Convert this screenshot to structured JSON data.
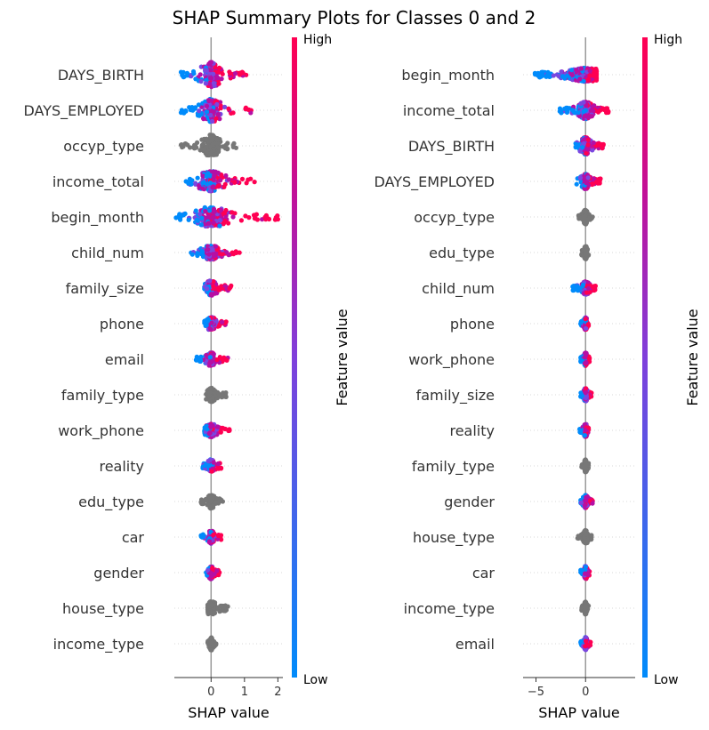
{
  "title": "SHAP Summary Plots for Classes 0 and 2",
  "colorbar": {
    "high_label": "High",
    "low_label": "Low",
    "axis_label": "Feature value",
    "colors": [
      "#008bfb",
      "#ff0052"
    ]
  },
  "gray_color": "#777777",
  "chart_data": [
    {
      "type": "scatter",
      "subtype": "shap-beeswarm",
      "class": "0",
      "xlabel": "SHAP value",
      "xlim": [
        -1.1,
        2.15
      ],
      "xticks": [
        "0",
        "1",
        "2"
      ],
      "xtick_values": [
        0,
        1,
        2
      ],
      "features": [
        {
          "name": "DAYS_BIRTH",
          "min": -0.9,
          "max": 1.05,
          "width": 1.0,
          "color": "mixed"
        },
        {
          "name": "DAYS_EMPLOYED",
          "min": -0.9,
          "max": 1.2,
          "width": 0.9,
          "color": "mixed"
        },
        {
          "name": "occyp_type",
          "min": -0.9,
          "max": 0.75,
          "width": 0.85,
          "color": "gray"
        },
        {
          "name": "income_total",
          "min": -0.75,
          "max": 1.3,
          "width": 0.8,
          "color": "mixed"
        },
        {
          "name": "begin_month",
          "min": -1.05,
          "max": 2.0,
          "width": 0.75,
          "color": "mixed"
        },
        {
          "name": "child_num",
          "min": -0.6,
          "max": 0.85,
          "width": 0.45,
          "color": "mixed"
        },
        {
          "name": "family_size",
          "min": -0.2,
          "max": 0.6,
          "width": 0.5,
          "color": "mixed"
        },
        {
          "name": "phone",
          "min": -0.2,
          "max": 0.45,
          "width": 0.4,
          "color": "mixed"
        },
        {
          "name": "email",
          "min": -0.45,
          "max": 0.5,
          "width": 0.4,
          "color": "mixed"
        },
        {
          "name": "family_type",
          "min": -0.15,
          "max": 0.45,
          "width": 0.45,
          "color": "gray"
        },
        {
          "name": "work_phone",
          "min": -0.2,
          "max": 0.55,
          "width": 0.4,
          "color": "mixed"
        },
        {
          "name": "reality",
          "min": -0.25,
          "max": 0.3,
          "width": 0.4,
          "color": "mixed"
        },
        {
          "name": "edu_type",
          "min": -0.3,
          "max": 0.35,
          "width": 0.45,
          "color": "gray"
        },
        {
          "name": "car",
          "min": -0.3,
          "max": 0.3,
          "width": 0.4,
          "color": "mixed"
        },
        {
          "name": "gender",
          "min": -0.15,
          "max": 0.25,
          "width": 0.4,
          "color": "mixed"
        },
        {
          "name": "house_type",
          "min": -0.1,
          "max": 0.5,
          "width": 0.45,
          "color": "gray"
        },
        {
          "name": "income_type",
          "min": -0.1,
          "max": 0.15,
          "width": 0.4,
          "color": "gray"
        }
      ]
    },
    {
      "type": "scatter",
      "subtype": "shap-beeswarm",
      "class": "2",
      "xlabel": "SHAP value",
      "xlim": [
        -6.3,
        5.0
      ],
      "xticks": [
        "−5",
        "0"
      ],
      "xtick_values": [
        -5,
        0
      ],
      "features": [
        {
          "name": "begin_month",
          "min": -5.1,
          "max": 1.1,
          "width": 0.45,
          "color": "mixed"
        },
        {
          "name": "income_total",
          "min": -2.6,
          "max": 2.3,
          "width": 0.6,
          "color": "mixed"
        },
        {
          "name": "DAYS_BIRTH",
          "min": -1.0,
          "max": 1.8,
          "width": 0.6,
          "color": "mixed"
        },
        {
          "name": "DAYS_EMPLOYED",
          "min": -0.9,
          "max": 1.5,
          "width": 0.5,
          "color": "mixed"
        },
        {
          "name": "occyp_type",
          "min": -0.7,
          "max": 0.7,
          "width": 0.5,
          "color": "gray"
        },
        {
          "name": "edu_type",
          "min": -0.4,
          "max": 0.3,
          "width": 0.45,
          "color": "gray"
        },
        {
          "name": "child_num",
          "min": -1.3,
          "max": 1.0,
          "width": 0.4,
          "color": "mixed"
        },
        {
          "name": "phone",
          "min": -0.5,
          "max": 0.3,
          "width": 0.4,
          "color": "mixed"
        },
        {
          "name": "work_phone",
          "min": -0.5,
          "max": 0.4,
          "width": 0.4,
          "color": "mixed"
        },
        {
          "name": "family_size",
          "min": -0.5,
          "max": 0.6,
          "width": 0.4,
          "color": "mixed"
        },
        {
          "name": "reality",
          "min": -0.6,
          "max": 0.3,
          "width": 0.4,
          "color": "mixed"
        },
        {
          "name": "family_type",
          "min": -0.4,
          "max": 0.3,
          "width": 0.4,
          "color": "gray"
        },
        {
          "name": "gender",
          "min": -0.5,
          "max": 0.7,
          "width": 0.4,
          "color": "mixed"
        },
        {
          "name": "house_type",
          "min": -0.8,
          "max": 0.6,
          "width": 0.45,
          "color": "gray"
        },
        {
          "name": "car",
          "min": -0.5,
          "max": 0.4,
          "width": 0.4,
          "color": "mixed"
        },
        {
          "name": "income_type",
          "min": -0.4,
          "max": 0.3,
          "width": 0.4,
          "color": "gray"
        },
        {
          "name": "email",
          "min": -0.5,
          "max": 0.5,
          "width": 0.4,
          "color": "mixed"
        }
      ]
    }
  ]
}
